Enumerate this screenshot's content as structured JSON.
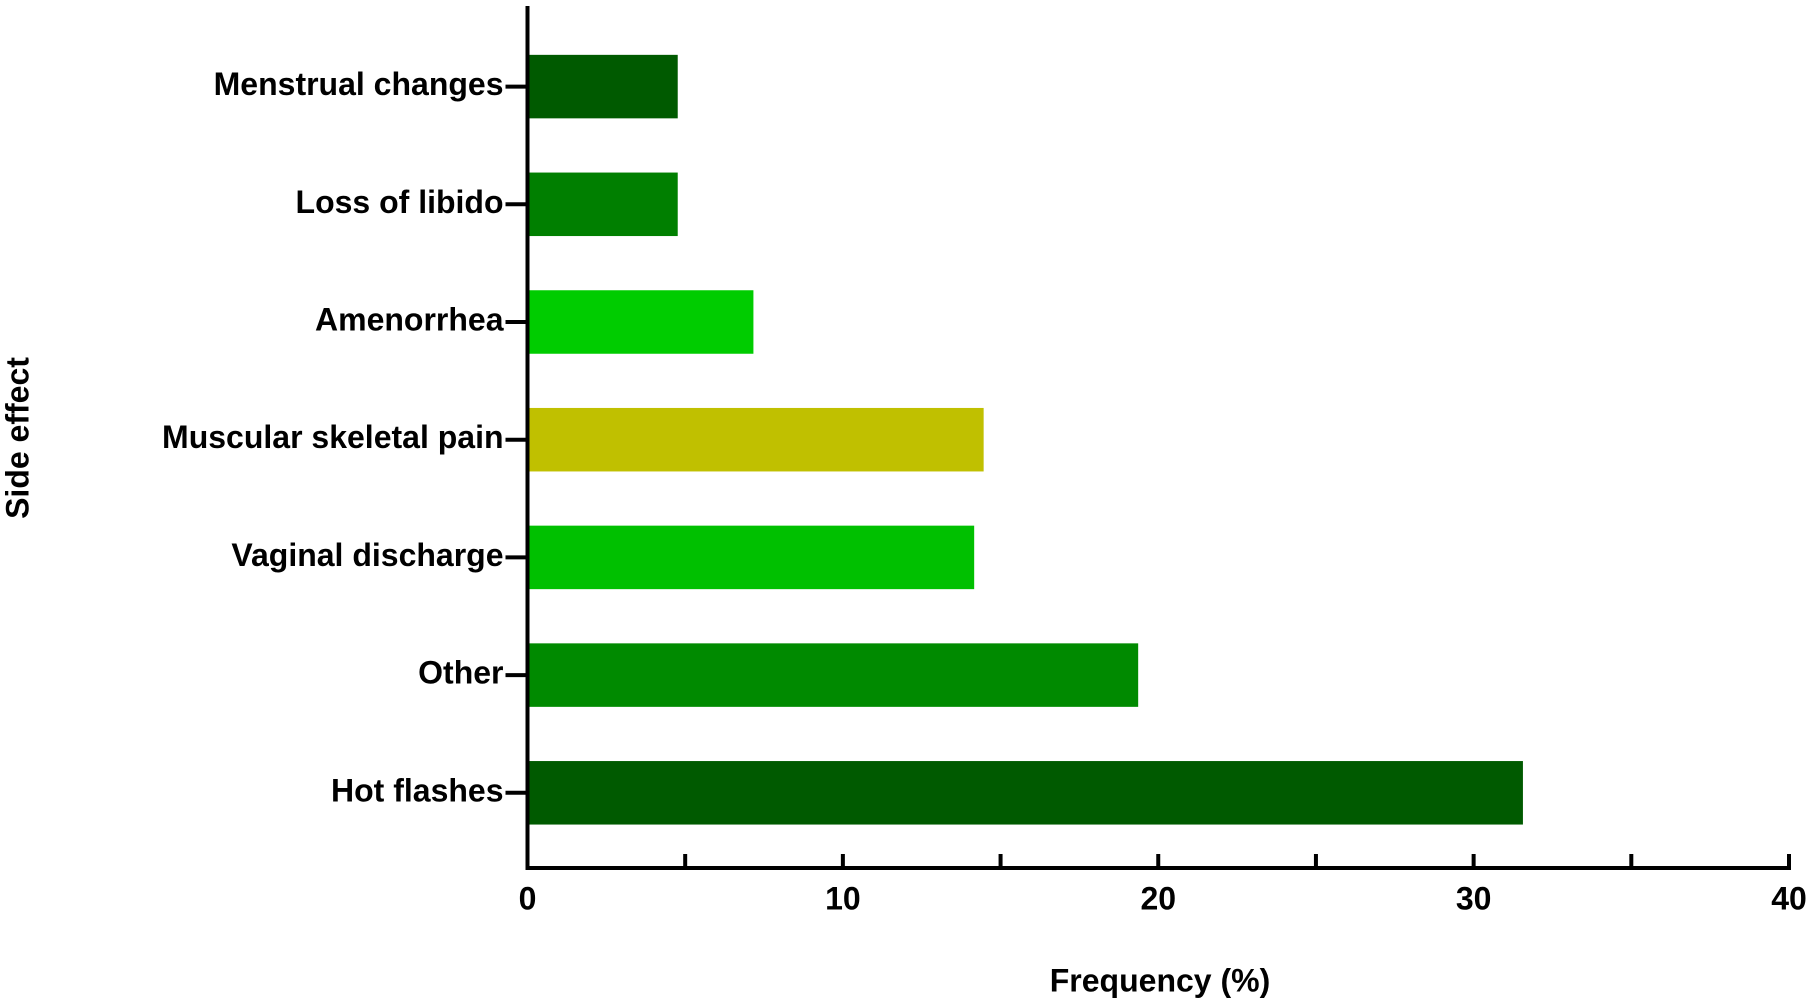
{
  "chart_data": {
    "type": "bar",
    "orientation": "horizontal",
    "x_label": "Frequency (%)",
    "y_label": "Side effect",
    "categories": [
      "Menstrual changes",
      "Loss of libido",
      "Amenorrhea",
      "Muscular skeletal pain",
      "Vaginal discharge",
      "Other",
      "Hot flashes"
    ],
    "values": [
      4.7,
      4.7,
      7.1,
      14.4,
      14.1,
      19.3,
      31.5
    ],
    "colors": [
      "#005a00",
      "#007f00",
      "#00cc00",
      "#c0c000",
      "#00c000",
      "#008a00",
      "#005a00"
    ],
    "xlim": [
      0,
      40
    ],
    "xticks": [
      0,
      10,
      20,
      30,
      40
    ],
    "xminorticks": [
      5,
      15,
      25,
      35
    ],
    "grid": false
  }
}
